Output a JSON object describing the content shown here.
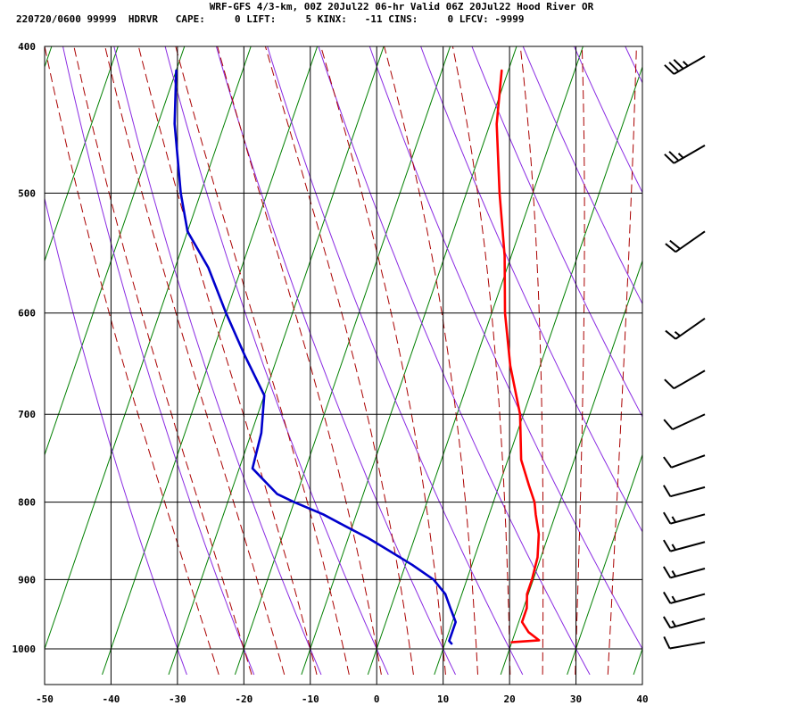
{
  "header": {
    "title": "WRF-GFS 4/3-km, 00Z 20Jul22 06-hr Valid 06Z 20Jul22 Hood River OR",
    "indices": "220720/0600 99999  HDRVR   CAPE:     0 LIFT:     5 KINX:   -11 CINS:     0 LFCV: -9999"
  },
  "chart_data": {
    "type": "line",
    "diagram": "skew-T log-P",
    "xlim": [
      -50,
      40
    ],
    "ylim": [
      1040,
      400
    ],
    "y_scale": "log",
    "x_ticks": [
      -50,
      -40,
      -30,
      -20,
      -10,
      0,
      10,
      20,
      30,
      40
    ],
    "y_ticks": [
      400,
      500,
      600,
      700,
      800,
      900,
      1000
    ],
    "grid": true,
    "series": [
      {
        "id": "temperature",
        "color": "#ff0000",
        "points": [
          [
            990,
            20.0
          ],
          [
            987,
            24.0
          ],
          [
            975,
            22.0
          ],
          [
            960,
            20.5
          ],
          [
            940,
            20.5
          ],
          [
            920,
            19.8
          ],
          [
            900,
            19.8
          ],
          [
            870,
            19.5
          ],
          [
            840,
            18.5
          ],
          [
            815,
            17.0
          ],
          [
            800,
            16.2
          ],
          [
            780,
            14.5
          ],
          [
            750,
            12.0
          ],
          [
            700,
            9.5
          ],
          [
            650,
            5.5
          ],
          [
            600,
            2.0
          ],
          [
            550,
            -1.0
          ],
          [
            500,
            -5.0
          ],
          [
            450,
            -9.0
          ],
          [
            415,
            -11.0
          ]
        ]
      },
      {
        "id": "dewpoint",
        "color": "#0000cc",
        "points": [
          [
            992,
            11.0
          ],
          [
            988,
            10.5
          ],
          [
            975,
            10.5
          ],
          [
            960,
            10.5
          ],
          [
            940,
            9.0
          ],
          [
            920,
            7.5
          ],
          [
            900,
            5.0
          ],
          [
            880,
            1.0
          ],
          [
            860,
            -3.5
          ],
          [
            845,
            -7.0
          ],
          [
            830,
            -11.0
          ],
          [
            815,
            -15.0
          ],
          [
            800,
            -20.0
          ],
          [
            790,
            -23.0
          ],
          [
            760,
            -28.0
          ],
          [
            720,
            -28.5
          ],
          [
            680,
            -30.0
          ],
          [
            640,
            -35.0
          ],
          [
            600,
            -40.0
          ],
          [
            560,
            -45.0
          ],
          [
            530,
            -50.0
          ],
          [
            500,
            -53.0
          ],
          [
            450,
            -57.5
          ],
          [
            415,
            -60.0
          ]
        ]
      }
    ],
    "isotherms": [
      -80,
      -70,
      -60,
      -50,
      -40,
      -30,
      -20,
      -10,
      0,
      10,
      20,
      30,
      40
    ],
    "dry_adiabats": [
      -30,
      -20,
      -10,
      0,
      10,
      20,
      30,
      40,
      50,
      60,
      70,
      80,
      90
    ],
    "moist_adiabats": [
      -25,
      -20,
      -15,
      -10,
      -5,
      0,
      5,
      10,
      15,
      20,
      25,
      30,
      35
    ],
    "background_colors": {
      "isotherm": "#008000",
      "dry_adiabat": "#8a2be2",
      "moist_adiabat": "#aa0000"
    },
    "wind_barbs": [
      {
        "p": 406,
        "dir": 240,
        "speed_kt": 35
      },
      {
        "p": 465,
        "dir": 240,
        "speed_kt": 25
      },
      {
        "p": 530,
        "dir": 235,
        "speed_kt": 20
      },
      {
        "p": 605,
        "dir": 235,
        "speed_kt": 15
      },
      {
        "p": 655,
        "dir": 240,
        "speed_kt": 10
      },
      {
        "p": 700,
        "dir": 245,
        "speed_kt": 10
      },
      {
        "p": 745,
        "dir": 250,
        "speed_kt": 10
      },
      {
        "p": 782,
        "dir": 255,
        "speed_kt": 10
      },
      {
        "p": 815,
        "dir": 255,
        "speed_kt": 15
      },
      {
        "p": 850,
        "dir": 255,
        "speed_kt": 15
      },
      {
        "p": 885,
        "dir": 255,
        "speed_kt": 15
      },
      {
        "p": 920,
        "dir": 255,
        "speed_kt": 15
      },
      {
        "p": 955,
        "dir": 255,
        "speed_kt": 15
      },
      {
        "p": 990,
        "dir": 260,
        "speed_kt": 10
      }
    ]
  }
}
